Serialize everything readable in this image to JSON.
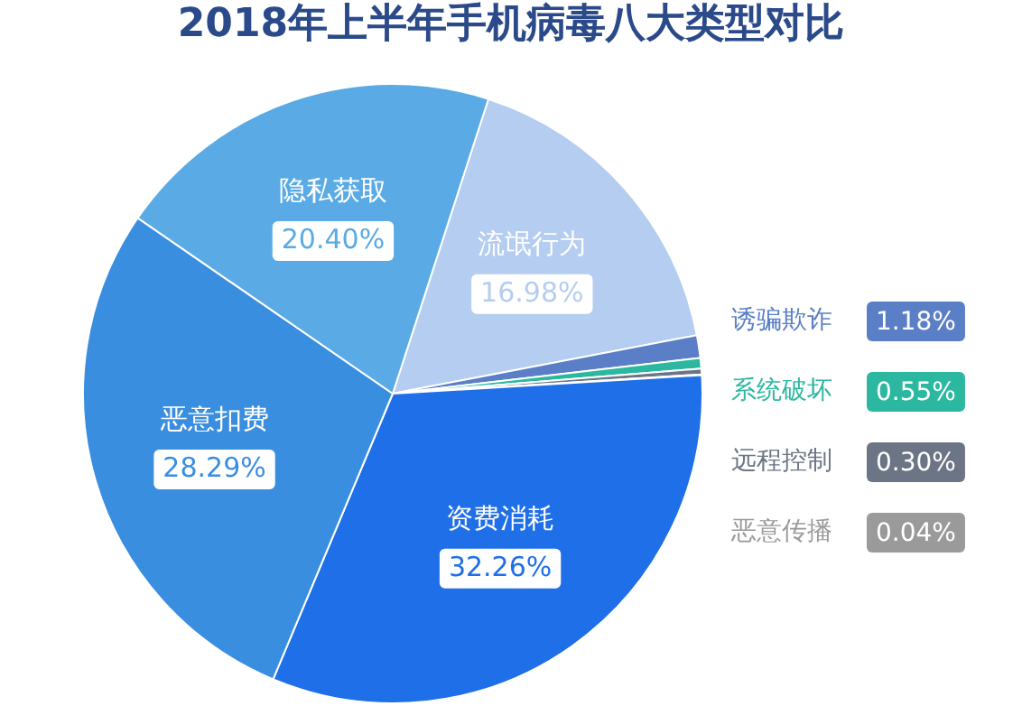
{
  "chart_data": {
    "type": "pie",
    "title": "2018年上半年手机病毒八大类型对比",
    "categories": [
      "流氓行为",
      "诱骗欺诈",
      "系统破坏",
      "远程控制",
      "恶意传播",
      "资费消耗",
      "恶意扣费",
      "隐私获取"
    ],
    "values": [
      16.98,
      1.18,
      0.55,
      0.3,
      0.04,
      32.26,
      28.29,
      20.4
    ],
    "colors": [
      "#b4cdf0",
      "#5b7fc6",
      "#2cb8a0",
      "#6c7585",
      "#9a9a9a",
      "#1f6fe8",
      "#3a8ee0",
      "#5aaae6"
    ],
    "value_labels": [
      "16.98%",
      "1.18%",
      "0.55%",
      "0.30%",
      "0.04%",
      "32.26%",
      "28.29%",
      "20.40%"
    ],
    "legend": "right"
  }
}
